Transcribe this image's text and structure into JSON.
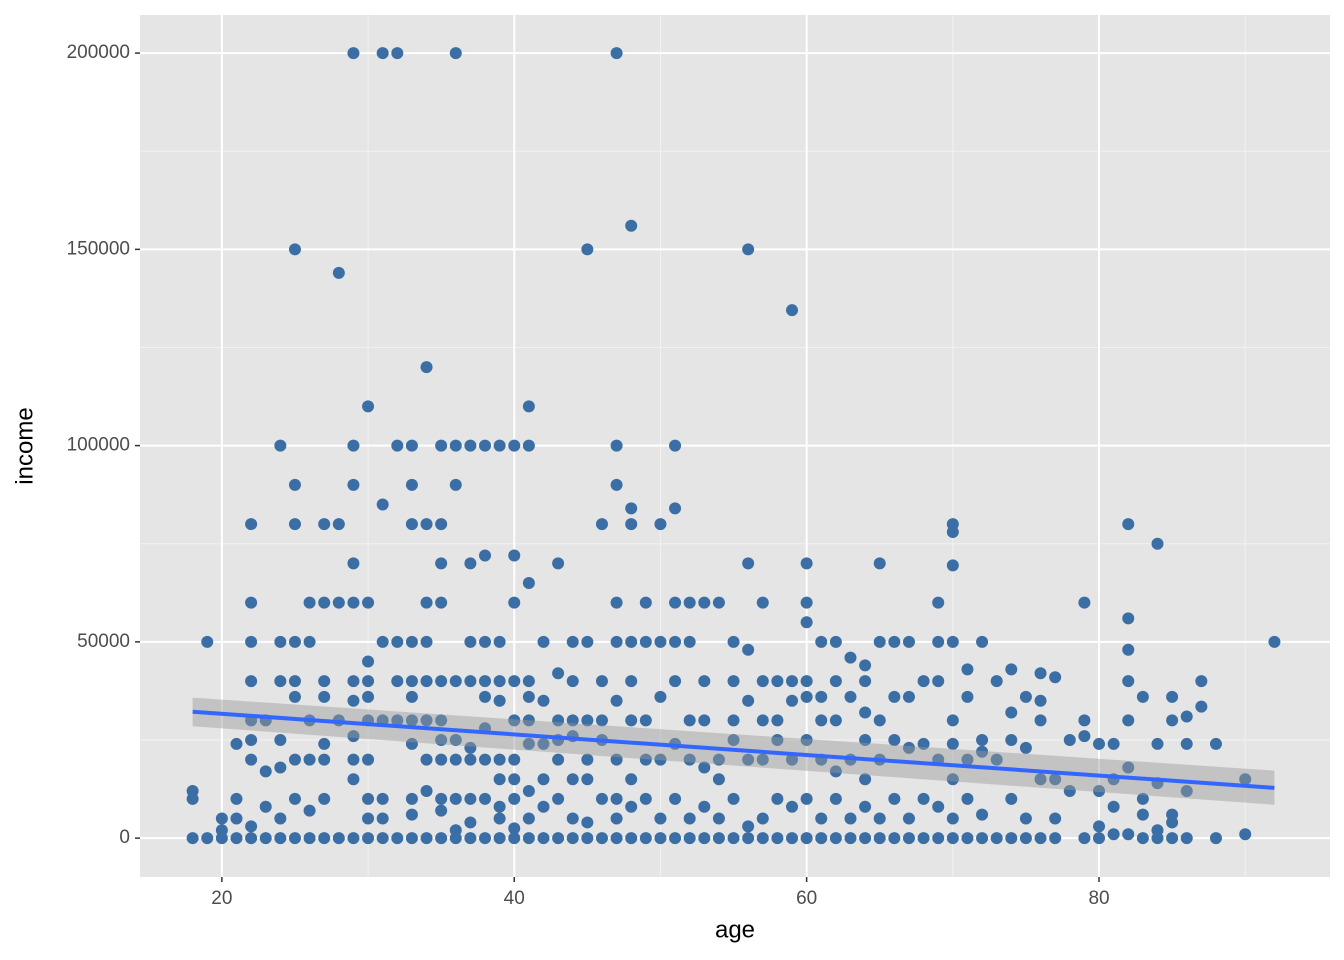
{
  "chart_data": {
    "type": "scatter",
    "x_label": "age",
    "y_label": "income",
    "xlim": [
      14.4,
      95.8
    ],
    "xticks": [
      20,
      40,
      60,
      80
    ],
    "xminorticks": [
      30,
      50,
      70,
      90
    ],
    "ylim": [
      -9900,
      209700
    ],
    "yticks": [
      0,
      50000,
      100000,
      150000,
      200000
    ],
    "yminorticks": [
      25000,
      75000,
      125000,
      175000
    ],
    "grid": true,
    "color": "#3a6ea5",
    "x": [
      18,
      18,
      18,
      19,
      19,
      20,
      20,
      20,
      21,
      21,
      21,
      21,
      22,
      22,
      22,
      22,
      22,
      22,
      22,
      22,
      22,
      23,
      23,
      23,
      23,
      24,
      24,
      24,
      24,
      24,
      24,
      24,
      25,
      25,
      25,
      25,
      25,
      25,
      25,
      25,
      25,
      26,
      26,
      26,
      26,
      26,
      26,
      27,
      27,
      27,
      27,
      27,
      27,
      27,
      27,
      28,
      28,
      28,
      28,
      28,
      29,
      29,
      29,
      29,
      29,
      29,
      29,
      29,
      29,
      29,
      29,
      30,
      30,
      30,
      30,
      30,
      30,
      30,
      30,
      30,
      30,
      31,
      31,
      31,
      31,
      31,
      31,
      31,
      32,
      32,
      32,
      32,
      32,
      32,
      33,
      33,
      33,
      33,
      33,
      33,
      33,
      33,
      33,
      33,
      33,
      34,
      34,
      34,
      34,
      34,
      34,
      34,
      34,
      34,
      35,
      35,
      35,
      35,
      35,
      35,
      35,
      35,
      35,
      35,
      35,
      36,
      36,
      36,
      36,
      36,
      36,
      36,
      36,
      36,
      37,
      37,
      37,
      37,
      37,
      37,
      37,
      37,
      37,
      38,
      38,
      38,
      38,
      38,
      38,
      38,
      38,
      38,
      39,
      39,
      39,
      39,
      39,
      39,
      39,
      39,
      39,
      40,
      40,
      40,
      40,
      40,
      40,
      40,
      40,
      40,
      40,
      41,
      41,
      41,
      41,
      41,
      41,
      41,
      41,
      41,
      41,
      42,
      42,
      42,
      42,
      42,
      42,
      43,
      43,
      43,
      43,
      43,
      43,
      43,
      44,
      44,
      44,
      44,
      44,
      44,
      44,
      45,
      45,
      45,
      45,
      45,
      45,
      45,
      46,
      46,
      46,
      46,
      46,
      46,
      47,
      47,
      47,
      47,
      47,
      47,
      47,
      47,
      47,
      47,
      48,
      48,
      48,
      48,
      48,
      48,
      48,
      48,
      48,
      49,
      49,
      49,
      49,
      49,
      49,
      50,
      50,
      50,
      50,
      50,
      50,
      51,
      51,
      51,
      51,
      51,
      51,
      51,
      51,
      52,
      52,
      52,
      52,
      52,
      52,
      53,
      53,
      53,
      53,
      53,
      53,
      54,
      54,
      54,
      54,
      54,
      55,
      55,
      55,
      55,
      55,
      55,
      56,
      56,
      56,
      56,
      56,
      56,
      56,
      57,
      57,
      57,
      57,
      57,
      57,
      58,
      58,
      58,
      58,
      58,
      59,
      59,
      59,
      59,
      59,
      59,
      60,
      60,
      60,
      60,
      60,
      60,
      60,
      60,
      61,
      61,
      61,
      61,
      61,
      61,
      62,
      62,
      62,
      62,
      62,
      62,
      63,
      63,
      63,
      63,
      63,
      64,
      64,
      64,
      64,
      64,
      64,
      64,
      65,
      65,
      65,
      65,
      65,
      65,
      66,
      66,
      66,
      66,
      66,
      67,
      67,
      67,
      67,
      67,
      68,
      68,
      68,
      68,
      69,
      69,
      69,
      69,
      69,
      69,
      70,
      70,
      70,
      70,
      70,
      70,
      70,
      70,
      70,
      71,
      71,
      71,
      71,
      71,
      72,
      72,
      72,
      72,
      72,
      73,
      73,
      73,
      74,
      74,
      74,
      74,
      74,
      75,
      75,
      75,
      75,
      76,
      76,
      76,
      76,
      76,
      77,
      77,
      77,
      77,
      78,
      78,
      79,
      79,
      79,
      79,
      80,
      80,
      80,
      80,
      81,
      81,
      81,
      81,
      82,
      82,
      82,
      82,
      82,
      82,
      82,
      83,
      83,
      83,
      83,
      84,
      84,
      84,
      84,
      84,
      85,
      85,
      85,
      85,
      85,
      86,
      86,
      86,
      86,
      87,
      87,
      88,
      88,
      90,
      90,
      92
    ],
    "values": [
      0,
      10000,
      12000,
      0,
      50000,
      0,
      2000,
      5000,
      0,
      5000,
      10000,
      24000,
      0,
      3000,
      20000,
      25000,
      30000,
      40000,
      50000,
      60000,
      80000,
      0,
      8000,
      17000,
      30000,
      0,
      5000,
      18000,
      25000,
      40000,
      50000,
      100000,
      0,
      10000,
      20000,
      36000,
      40000,
      50000,
      80000,
      90000,
      150000,
      0,
      7000,
      20000,
      30000,
      50000,
      60000,
      0,
      10000,
      20000,
      24000,
      36000,
      40000,
      60000,
      80000,
      0,
      30000,
      60000,
      80000,
      144000,
      0,
      15000,
      20000,
      26000,
      35000,
      40000,
      60000,
      70000,
      90000,
      100000,
      200000,
      0,
      5000,
      10000,
      20000,
      30000,
      36000,
      40000,
      45000,
      60000,
      110000,
      0,
      5000,
      10000,
      30000,
      50000,
      85000,
      200000,
      0,
      30000,
      40000,
      50000,
      100000,
      200000,
      0,
      6000,
      10000,
      24000,
      30000,
      36000,
      40000,
      50000,
      80000,
      90000,
      100000,
      0,
      12000,
      20000,
      30000,
      40000,
      50000,
      60000,
      80000,
      120000,
      0,
      7000,
      10000,
      20000,
      25000,
      30000,
      40000,
      60000,
      70000,
      80000,
      100000,
      0,
      2000,
      10000,
      20000,
      25000,
      40000,
      90000,
      100000,
      200000,
      0,
      4000,
      10000,
      20000,
      23000,
      40000,
      50000,
      70000,
      100000,
      0,
      10000,
      20000,
      28000,
      36000,
      40000,
      50000,
      72000,
      100000,
      0,
      5000,
      8000,
      15000,
      20000,
      35000,
      40000,
      50000,
      100000,
      0,
      2500,
      10000,
      15000,
      20000,
      30000,
      40000,
      60000,
      72000,
      100000,
      0,
      5000,
      12000,
      24000,
      30000,
      36000,
      40000,
      65000,
      100000,
      110000,
      0,
      8000,
      15000,
      24000,
      35000,
      50000,
      0,
      10000,
      20000,
      25000,
      30000,
      42000,
      70000,
      0,
      5000,
      15000,
      26000,
      30000,
      40000,
      50000,
      0,
      4000,
      15000,
      20000,
      30000,
      50000,
      150000,
      0,
      10000,
      25000,
      30000,
      40000,
      80000,
      0,
      5000,
      10000,
      20000,
      35000,
      50000,
      60000,
      90000,
      100000,
      200000,
      0,
      8000,
      15000,
      30000,
      40000,
      50000,
      80000,
      84000,
      156000,
      0,
      10000,
      20000,
      30000,
      50000,
      60000,
      0,
      5000,
      20000,
      36000,
      50000,
      80000,
      0,
      10000,
      24000,
      40000,
      50000,
      60000,
      84000,
      100000,
      0,
      5000,
      20000,
      30000,
      50000,
      60000,
      0,
      8000,
      18000,
      30000,
      40000,
      60000,
      0,
      5000,
      15000,
      20000,
      60000,
      0,
      10000,
      25000,
      30000,
      40000,
      50000,
      0,
      3000,
      20000,
      35000,
      48000,
      70000,
      150000,
      0,
      5000,
      20000,
      30000,
      40000,
      60000,
      0,
      10000,
      25000,
      30000,
      40000,
      0,
      8000,
      20000,
      35000,
      40000,
      134500,
      0,
      10000,
      25000,
      36000,
      40000,
      55000,
      60000,
      70000,
      0,
      5000,
      20000,
      30000,
      36000,
      50000,
      0,
      10000,
      17000,
      30000,
      40000,
      50000,
      0,
      5000,
      20000,
      36000,
      46000,
      0,
      8000,
      15000,
      25000,
      32000,
      40000,
      44000,
      0,
      5000,
      20000,
      30000,
      50000,
      70000,
      0,
      10000,
      25000,
      36000,
      50000,
      0,
      5000,
      23000,
      36000,
      50000,
      0,
      10000,
      24000,
      40000,
      0,
      8000,
      20000,
      40000,
      50000,
      60000,
      0,
      5000,
      15000,
      24000,
      30000,
      50000,
      69500,
      78000,
      80000,
      0,
      10000,
      20000,
      36000,
      43000,
      0,
      6000,
      22000,
      25000,
      50000,
      0,
      20000,
      40000,
      0,
      10000,
      25000,
      32000,
      43000,
      0,
      5000,
      23000,
      36000,
      0,
      15000,
      30000,
      35000,
      42000,
      0,
      5000,
      15000,
      41000,
      12000,
      25000,
      0,
      26000,
      30000,
      60000,
      0,
      3000,
      12000,
      24000,
      1000,
      8000,
      15000,
      24000,
      1000,
      18000,
      30000,
      40000,
      48000,
      56000,
      80000,
      0,
      6000,
      10000,
      36000,
      0,
      2000,
      14000,
      24000,
      75000,
      0,
      4000,
      6000,
      30000,
      36000,
      0,
      12000,
      24000,
      31000,
      33500,
      40000,
      0,
      24000,
      1000,
      15000,
      50000
    ],
    "trend": {
      "color": "#3366ff",
      "band_color": "#999999",
      "x": [
        18,
        92
      ],
      "y": [
        32200,
        12800
      ],
      "lower": [
        28500,
        8500
      ],
      "upper": [
        35800,
        17200
      ]
    }
  }
}
